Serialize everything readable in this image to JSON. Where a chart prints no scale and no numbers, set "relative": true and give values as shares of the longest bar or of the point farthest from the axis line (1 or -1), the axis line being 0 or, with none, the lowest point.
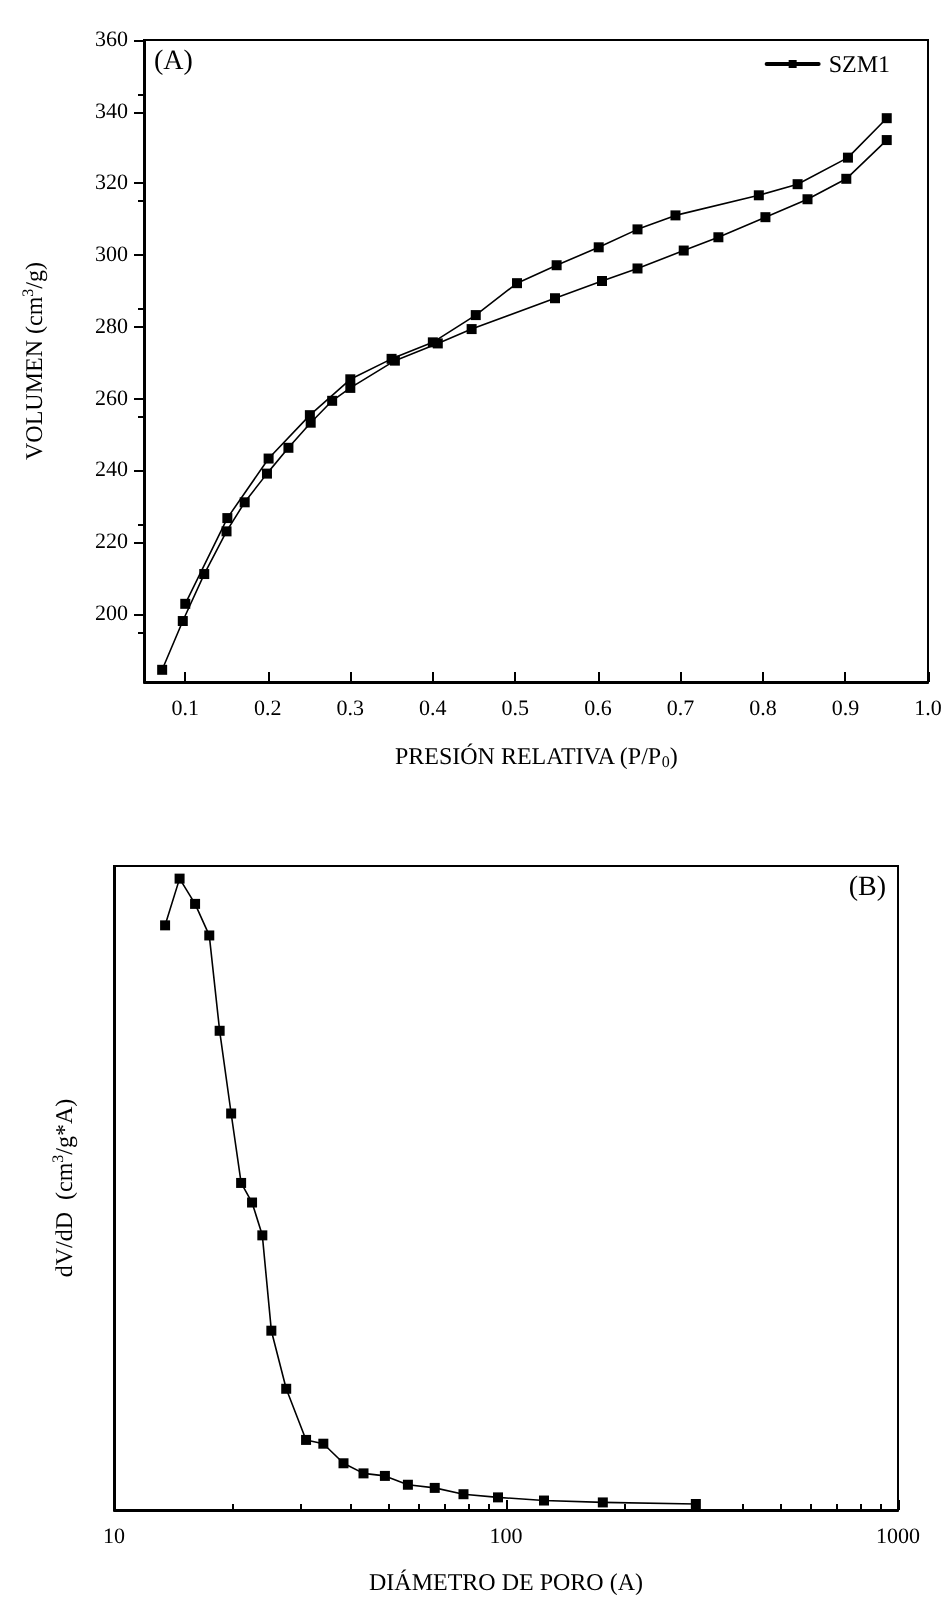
{
  "chart_data": [
    {
      "type": "line",
      "xlabel": "PRESIÓN RELATIVA (P/P$_{0}$)",
      "ylabel": "VOLUMEN (cm$^{3}$/g)",
      "annotations": [
        "(A)"
      ],
      "xlim": [
        0.05,
        1.0
      ],
      "xticks": [
        {
          "value": 0.1,
          "label": "0.1"
        },
        {
          "value": 0.2,
          "label": "0.2"
        },
        {
          "value": 0.3,
          "label": "0.3"
        },
        {
          "value": 0.4,
          "label": "0.4"
        },
        {
          "value": 0.5,
          "label": "0.5"
        },
        {
          "value": 0.6,
          "label": "0.6"
        },
        {
          "value": 0.7,
          "label": "0.7"
        },
        {
          "value": 0.8,
          "label": "0.8"
        },
        {
          "value": 0.9,
          "label": "0.9"
        },
        {
          "value": 1.0,
          "label": "1.0"
        }
      ],
      "ylim": [
        181,
        360
      ],
      "yticks": [
        200,
        220,
        240,
        260,
        280,
        300,
        320,
        340,
        360
      ],
      "marker": "square",
      "legend": "top right",
      "grid": false,
      "series": [
        {
          "name": "SZM1",
          "color": "#000000",
          "x": [
            0.072,
            0.097,
            0.123,
            0.15,
            0.172,
            0.199,
            0.225,
            0.252,
            0.278,
            0.3,
            0.354,
            0.406,
            0.447,
            0.548,
            0.605,
            0.648,
            0.704,
            0.746,
            0.803,
            0.854,
            0.901,
            0.95
          ],
          "values": [
            184.4,
            198,
            211.1,
            223,
            231.1,
            239.1,
            246.3,
            253.3,
            259.4,
            263,
            270.6,
            275.4,
            279.4,
            288,
            292.8,
            296.3,
            301.3,
            305,
            310.6,
            315.6,
            321.3,
            332.1
          ]
        },
        {
          "color": "#000000",
          "x": [
            0.95,
            0.903,
            0.842,
            0.795,
            0.694,
            0.648,
            0.601,
            0.55,
            0.502,
            0.452,
            0.4,
            0.35,
            0.3,
            0.251,
            0.201,
            0.151,
            0.1
          ],
          "values": [
            338.2,
            327.2,
            319.8,
            316.7,
            311.1,
            307.2,
            302.2,
            297.2,
            292.2,
            283.3,
            275.7,
            271.1,
            265.4,
            255.4,
            243.3,
            226.7,
            202.8
          ]
        }
      ]
    },
    {
      "type": "line",
      "xlabel": "DIÁMETRO DE PORO (A)",
      "ylabel": "dV/dD  (cm$^{3}$/g*A)",
      "annotations": [
        "(B)"
      ],
      "log": "x",
      "relative": true,
      "xlim": [
        10,
        1000
      ],
      "xticks": [
        10,
        100,
        1000
      ],
      "marker": "square",
      "grid": false,
      "tick_labels": "x",
      "series": [
        {
          "color": "#000000",
          "x": [
            13.5,
            14.7,
            16.1,
            17.5,
            18.6,
            19.9,
            21.1,
            22.5,
            23.9,
            25.2,
            27.5,
            30.9,
            34.2,
            38.5,
            43.3,
            49.1,
            56.2,
            65.8,
            77.9,
            95.4,
            125,
            176.6,
            305
          ],
          "values": [
            0.926,
            1.0,
            0.96,
            0.91,
            0.759,
            0.628,
            0.518,
            0.487,
            0.435,
            0.284,
            0.192,
            0.111,
            0.105,
            0.074,
            0.058,
            0.054,
            0.04,
            0.035,
            0.025,
            0.02,
            0.015,
            0.012,
            0.0095
          ]
        }
      ]
    }
  ]
}
